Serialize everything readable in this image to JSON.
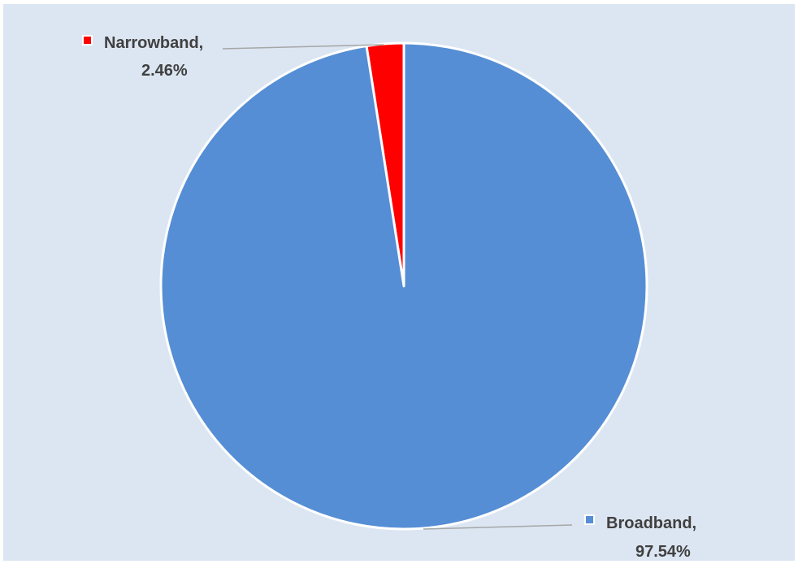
{
  "chart_data": {
    "type": "pie",
    "title": "",
    "categories": [
      "Narrowband",
      "Broadband"
    ],
    "values": [
      2.46,
      97.54
    ],
    "unit": "%",
    "colors": [
      "#ff0000",
      "#558ed5"
    ],
    "slice_border_color": "#ffffff",
    "background_color": "#dce6f2",
    "legend": "none",
    "data_labels": [
      {
        "category": "Narrowband,",
        "value": "2.46%"
      },
      {
        "category": "Broadband,",
        "value": "97.54%"
      }
    ]
  }
}
